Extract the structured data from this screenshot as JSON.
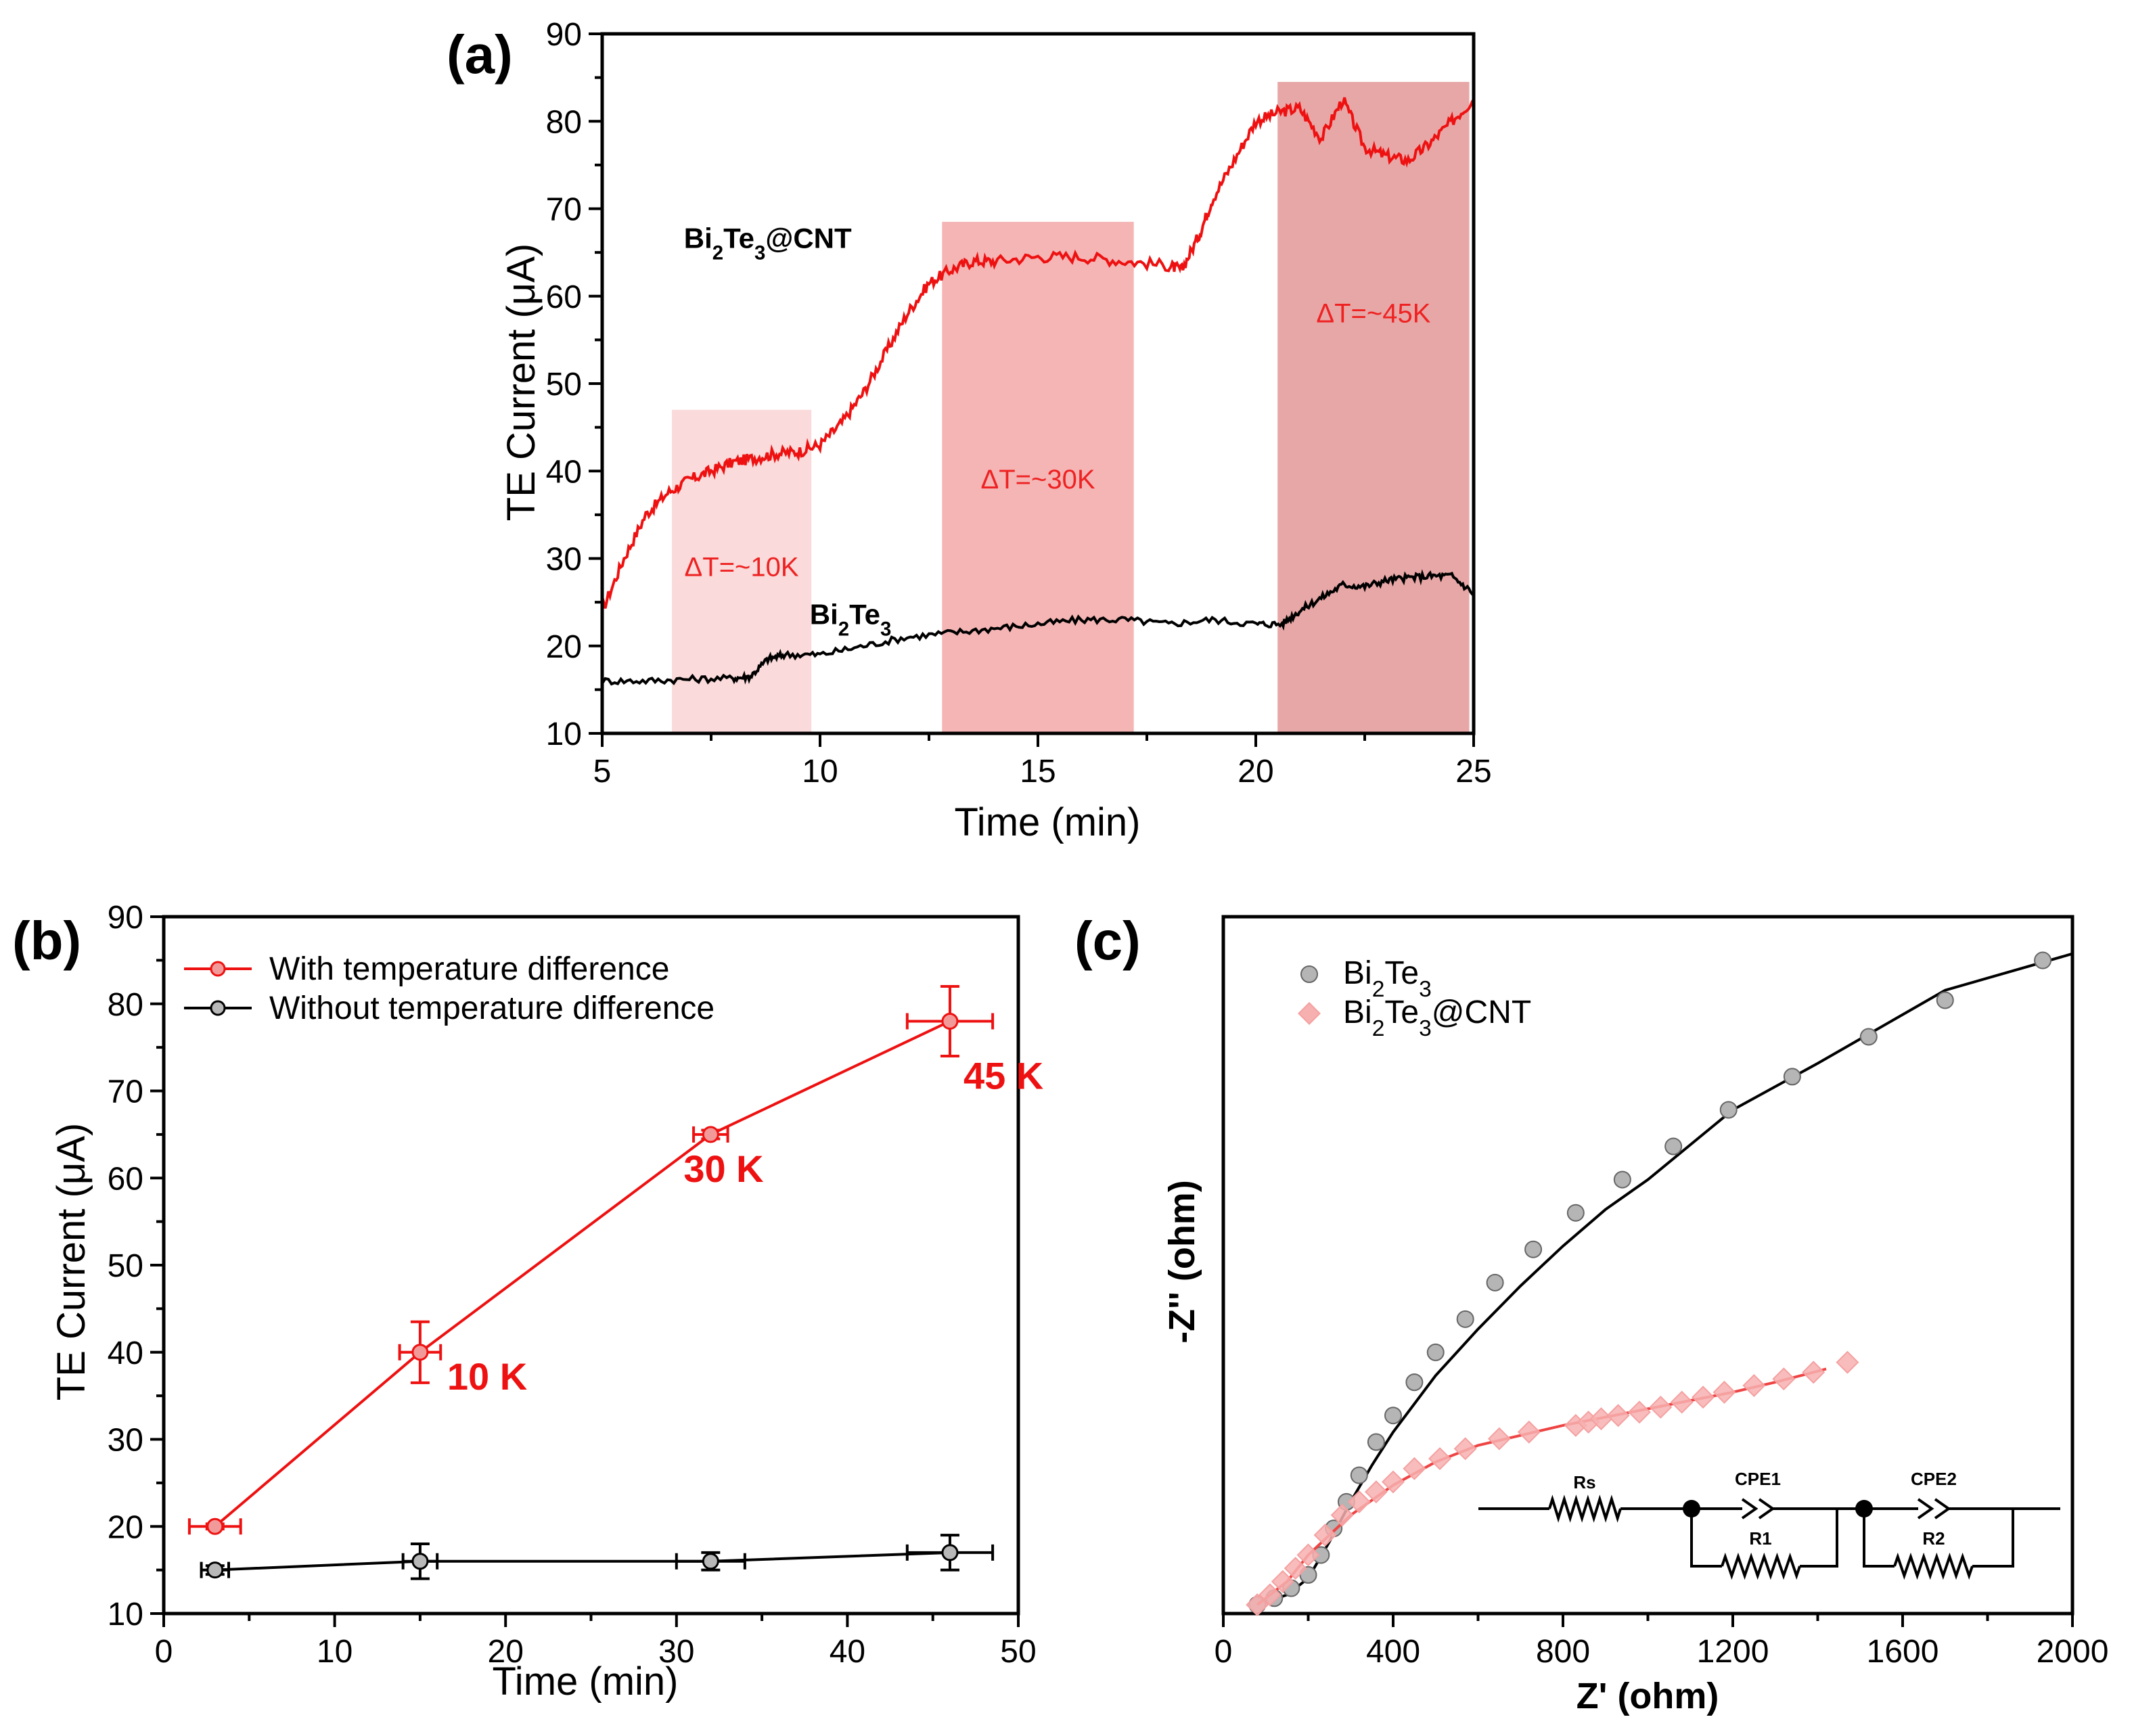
{
  "chart_data": [
    {
      "panel": "(a)",
      "type": "line",
      "xlabel": "Time (min)",
      "ylabel": "TE Current (μA)",
      "xlim": [
        5,
        25
      ],
      "ylim": [
        10,
        90
      ],
      "xticks": [
        5,
        10,
        15,
        20,
        25
      ],
      "yticks": [
        10,
        20,
        30,
        40,
        50,
        60,
        70,
        80,
        90
      ],
      "regions": [
        {
          "label": "ΔT=~10K",
          "x": [
            6.6,
            9.8
          ],
          "ymax": 47,
          "color": "#fadada"
        },
        {
          "label": "ΔT=~30K",
          "x": [
            12.8,
            17.2
          ],
          "ymax": 68.5,
          "color": "#f5b5b5"
        },
        {
          "label": "ΔT=~45K",
          "x": [
            20.5,
            24.9
          ],
          "ymax": 84.5,
          "color": "#e8a7a7"
        }
      ],
      "series": [
        {
          "name": "Bi₂Te₃@CNT",
          "color": "#ee1111",
          "x": [
            5,
            5.5,
            6,
            6.5,
            7,
            7.5,
            8,
            8.5,
            9,
            9.5,
            10,
            10.5,
            11,
            11.5,
            12,
            12.5,
            13,
            13.5,
            14,
            15,
            16,
            17,
            18,
            18.3,
            18.7,
            19,
            19.5,
            20,
            20.5,
            21,
            21.5,
            22,
            22.5,
            23,
            23.5,
            24,
            24.5,
            25
          ],
          "y": [
            24,
            30,
            35,
            37.5,
            39,
            40,
            41,
            41.5,
            42,
            42.2,
            43,
            45.5,
            49,
            53.5,
            58,
            61.5,
            63,
            64,
            64,
            64.5,
            64.5,
            64,
            63.5,
            63,
            67,
            71,
            75.5,
            80,
            81,
            81.5,
            78,
            82.5,
            77,
            76,
            75.5,
            77.5,
            80,
            82.5
          ]
        },
        {
          "name": "Bi₂Te₃",
          "color": "#000000",
          "x": [
            5,
            6,
            7,
            8,
            8.4,
            8.8,
            9.2,
            10,
            11,
            12,
            13,
            14,
            15,
            16,
            17,
            18,
            19,
            20,
            20.6,
            21,
            21.5,
            22,
            22.5,
            23,
            23.5,
            24,
            24.5,
            25
          ],
          "y": [
            16,
            16,
            16.2,
            16.3,
            16.5,
            18.5,
            19,
            19,
            20,
            21,
            21.5,
            22,
            22.5,
            23,
            23,
            22.5,
            23,
            22.5,
            22.5,
            24,
            25.5,
            27,
            26.8,
            27.5,
            27.8,
            28,
            28,
            26
          ]
        }
      ],
      "annotations": [
        {
          "text": "Bi₂Te₃@CNT",
          "x": 8.8,
          "y": 65.5
        },
        {
          "text": "Bi₂Te₃",
          "x": 10.7,
          "y": 22.5
        }
      ]
    },
    {
      "panel": "(b)",
      "type": "line",
      "xlabel": "Time (min)",
      "ylabel": "TE Current (μA)",
      "xlim": [
        0,
        50
      ],
      "ylim": [
        10,
        90
      ],
      "xticks": [
        0,
        10,
        20,
        30,
        40,
        50
      ],
      "yticks": [
        10,
        20,
        30,
        40,
        50,
        60,
        70,
        80,
        90
      ],
      "legend_position": "top-left",
      "series": [
        {
          "name": "With temperature difference",
          "color": "#ee1111",
          "x": [
            3,
            15,
            32,
            46
          ],
          "y": [
            20,
            40,
            65,
            78
          ],
          "xerr": [
            1.5,
            1.2,
            1.0,
            2.5
          ],
          "yerr": [
            0.3,
            3.5,
            0.5,
            4
          ],
          "labels": [
            "",
            "10 K",
            "30 K",
            "45 K"
          ]
        },
        {
          "name": "Without temperature difference",
          "color": "#000000",
          "x": [
            3,
            15,
            32,
            46
          ],
          "y": [
            15,
            16,
            16,
            17
          ],
          "xerr": [
            0.8,
            1.0,
            2.0,
            2.5
          ],
          "yerr": [
            0.5,
            2,
            1,
            2
          ]
        }
      ]
    },
    {
      "panel": "(c)",
      "type": "scatter",
      "xlabel": "Z' (ohm)",
      "ylabel": "-Z'' (ohm)",
      "xlim": [
        0,
        2000
      ],
      "ylim": [
        0,
        2000
      ],
      "xticks": [
        0,
        400,
        800,
        1200,
        1600,
        2000
      ],
      "legend_position": "top-left",
      "circuit": {
        "labels": [
          "Rs",
          "CPE1",
          "R1",
          "CPE2",
          "R2"
        ]
      },
      "series": [
        {
          "name": "Bi₂Te₃",
          "marker": "circle",
          "color": "#b0b0b0",
          "x": [
            80,
            120,
            160,
            200,
            230,
            260,
            290,
            320,
            360,
            400,
            450,
            500,
            570,
            640,
            730,
            830,
            940,
            1060,
            1190,
            1340,
            1520,
            1700,
            1930
          ],
          "y": [
            10,
            30,
            60,
            100,
            160,
            240,
            320,
            400,
            500,
            580,
            680,
            770,
            870,
            980,
            1080,
            1190,
            1290,
            1390,
            1500,
            1600,
            1720,
            1830,
            1950
          ],
          "fit_x": [
            80,
            150,
            200,
            250,
            300,
            350,
            400,
            500,
            600,
            700,
            800,
            900,
            1000,
            1200,
            1400,
            1700,
            2000
          ],
          "fit_y": [
            10,
            40,
            90,
            200,
            320,
            430,
            530,
            700,
            840,
            970,
            1090,
            1200,
            1290,
            1500,
            1640,
            1860,
            1970
          ]
        },
        {
          "name": "Bi₂Te₃@CNT",
          "marker": "diamond",
          "color": "#f7b0b0",
          "x": [
            80,
            110,
            140,
            170,
            200,
            240,
            280,
            320,
            360,
            400,
            450,
            510,
            570,
            650,
            720,
            830,
            860,
            890,
            930,
            980,
            1030,
            1080,
            1130,
            1180,
            1250,
            1320,
            1390,
            1470
          ],
          "y": [
            10,
            40,
            80,
            120,
            160,
            220,
            280,
            320,
            350,
            380,
            420,
            450,
            480,
            510,
            530,
            550,
            560,
            570,
            580,
            590,
            605,
            620,
            635,
            650,
            670,
            690,
            710,
            740
          ],
          "fit_x": [
            80,
            150,
            200,
            250,
            300,
            400,
            500,
            600,
            700,
            800,
            900,
            1000,
            1100,
            1200,
            1300,
            1420
          ],
          "fit_y": [
            10,
            80,
            160,
            220,
            280,
            370,
            440,
            490,
            520,
            550,
            575,
            600,
            625,
            650,
            680,
            720
          ]
        }
      ]
    }
  ]
}
